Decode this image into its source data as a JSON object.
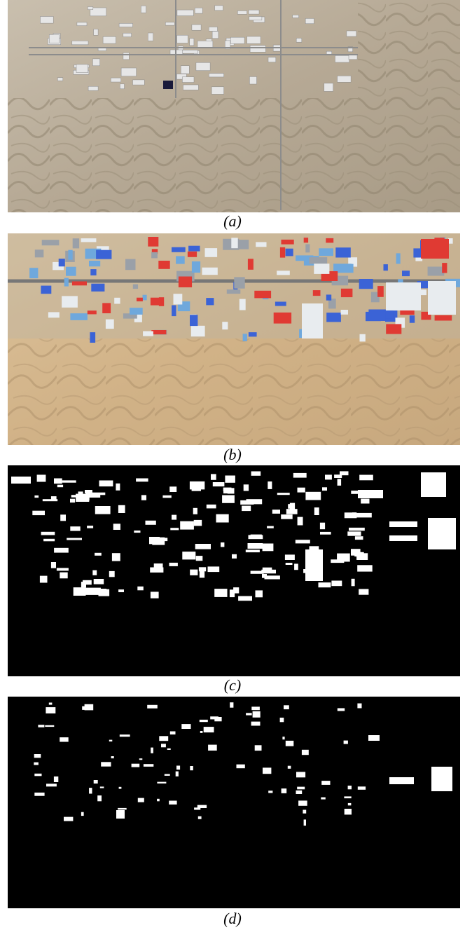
{
  "figure": {
    "panels": [
      {
        "id": "a",
        "caption": "(a)",
        "content": "satellite-image-pale"
      },
      {
        "id": "b",
        "caption": "(b)",
        "content": "satellite-image-colored"
      },
      {
        "id": "c",
        "caption": "(c)",
        "content": "building-mask-ground-truth"
      },
      {
        "id": "d",
        "caption": "(d)",
        "content": "building-mask-prediction"
      }
    ]
  },
  "colors": {
    "terrain_a": "#b9ad98",
    "terrain_b": "#d3b58a",
    "mask_bg": "#000000",
    "mask_fg": "#ffffff",
    "roof_blue": "#3b63d6",
    "roof_red": "#e03a33",
    "roof_white": "#e8ecef"
  }
}
